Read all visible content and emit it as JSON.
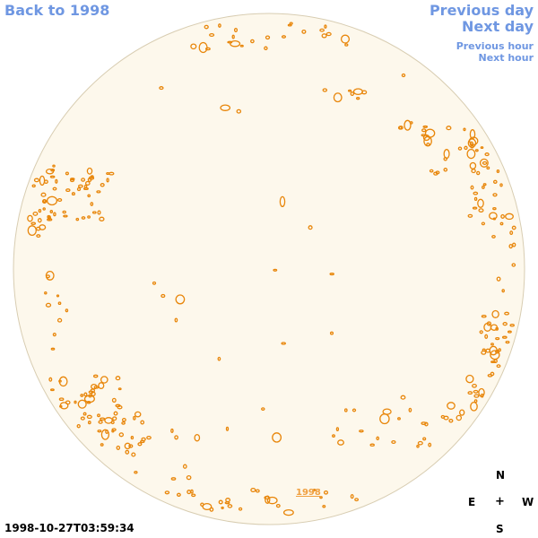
{
  "nav": {
    "back_label": "Back to 1998",
    "previous_day": "Previous day",
    "next_day": "Next day",
    "previous_hour": "Previous hour",
    "next_hour": "Next hour"
  },
  "timestamp": "1998-10-27T03:59:34",
  "year_link": "1998",
  "compass": {
    "north": "N",
    "east": "E",
    "center": "+",
    "west": "W",
    "south": "S"
  },
  "colors": {
    "disk_fill": "#fdf8ec",
    "disk_stroke": "#d8cdb2",
    "contour": "#e8860a",
    "link": "#6f97e2"
  }
}
